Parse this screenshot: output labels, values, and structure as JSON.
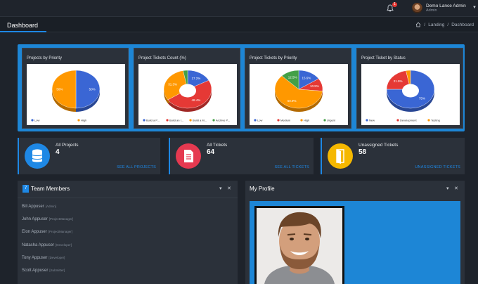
{
  "topbar": {
    "notification_count": "1",
    "user_name": "Demo Lance Admin",
    "user_role": "Admin"
  },
  "header": {
    "page_title": "Dashboard",
    "breadcrumb": [
      "Landing",
      "Dashboard"
    ]
  },
  "chart_data": [
    {
      "type": "pie",
      "title": "Projects by Priority",
      "categories": [
        "Low",
        "High"
      ],
      "values": [
        50,
        50
      ],
      "labels": [
        "50%",
        "50%"
      ],
      "colors": [
        "#3a66d4",
        "#ff9800"
      ],
      "legend": "bottom"
    },
    {
      "type": "pie",
      "title": "Project Tickets Count (%)",
      "categories": [
        "Build a P...",
        "Build an I...",
        "Build a M...",
        "Archive P..."
      ],
      "values": [
        17.2,
        48.4,
        31.3,
        3.1
      ],
      "labels": [
        "17.2%",
        "48.4%",
        "31.3%",
        ""
      ],
      "colors": [
        "#3a66d4",
        "#e53935",
        "#ff9800",
        "#43a047"
      ],
      "legend": "bottom"
    },
    {
      "type": "pie",
      "title": "Project Tickets by Priority",
      "categories": [
        "Low",
        "Medium",
        "High",
        "Urgent"
      ],
      "values": [
        15.6,
        10.9,
        60.9,
        12.5
      ],
      "labels": [
        "15.6%",
        "10.9%",
        "60.9%",
        "12.5%"
      ],
      "colors": [
        "#3a66d4",
        "#e53935",
        "#ff9800",
        "#43a047"
      ],
      "legend": "bottom"
    },
    {
      "type": "pie",
      "title": "Project Ticket by Status",
      "categories": [
        "New",
        "Development",
        "Testing"
      ],
      "values": [
        75,
        21.9,
        3.1
      ],
      "labels": [
        "75%",
        "21.9%",
        ""
      ],
      "colors": [
        "#3a66d4",
        "#e53935",
        "#ff9800"
      ],
      "legend": "bottom"
    }
  ],
  "stats": [
    {
      "label": "All Projects",
      "value": "4",
      "link": "SEE ALL PROJECTS",
      "color": "#1e88e5",
      "icon": "database-icon"
    },
    {
      "label": "All Tickets",
      "value": "64",
      "link": "SEE ALL TICKETS",
      "color": "#e53950",
      "icon": "document-icon"
    },
    {
      "label": "Unassigned Tickets",
      "value": "58",
      "link": "UNASSIGNED TICKETS",
      "color": "#f5b800",
      "icon": "door-icon"
    }
  ],
  "team": {
    "title": "Team Members",
    "count": "7",
    "members": [
      {
        "name": "Bill Appuser",
        "role": "[Admin]"
      },
      {
        "name": "John Appuser",
        "role": "[ProjectManager]"
      },
      {
        "name": "Elon Appuser",
        "role": "[ProjectManager]"
      },
      {
        "name": "Natasha Appuser",
        "role": "[Developer]"
      },
      {
        "name": "Tony Appuser",
        "role": "[Developer]"
      },
      {
        "name": "Scott Appuser",
        "role": "[Submitter]"
      }
    ]
  },
  "profile": {
    "title": "My Profile"
  },
  "controls": {
    "collapse": "▾",
    "close": "✕"
  }
}
